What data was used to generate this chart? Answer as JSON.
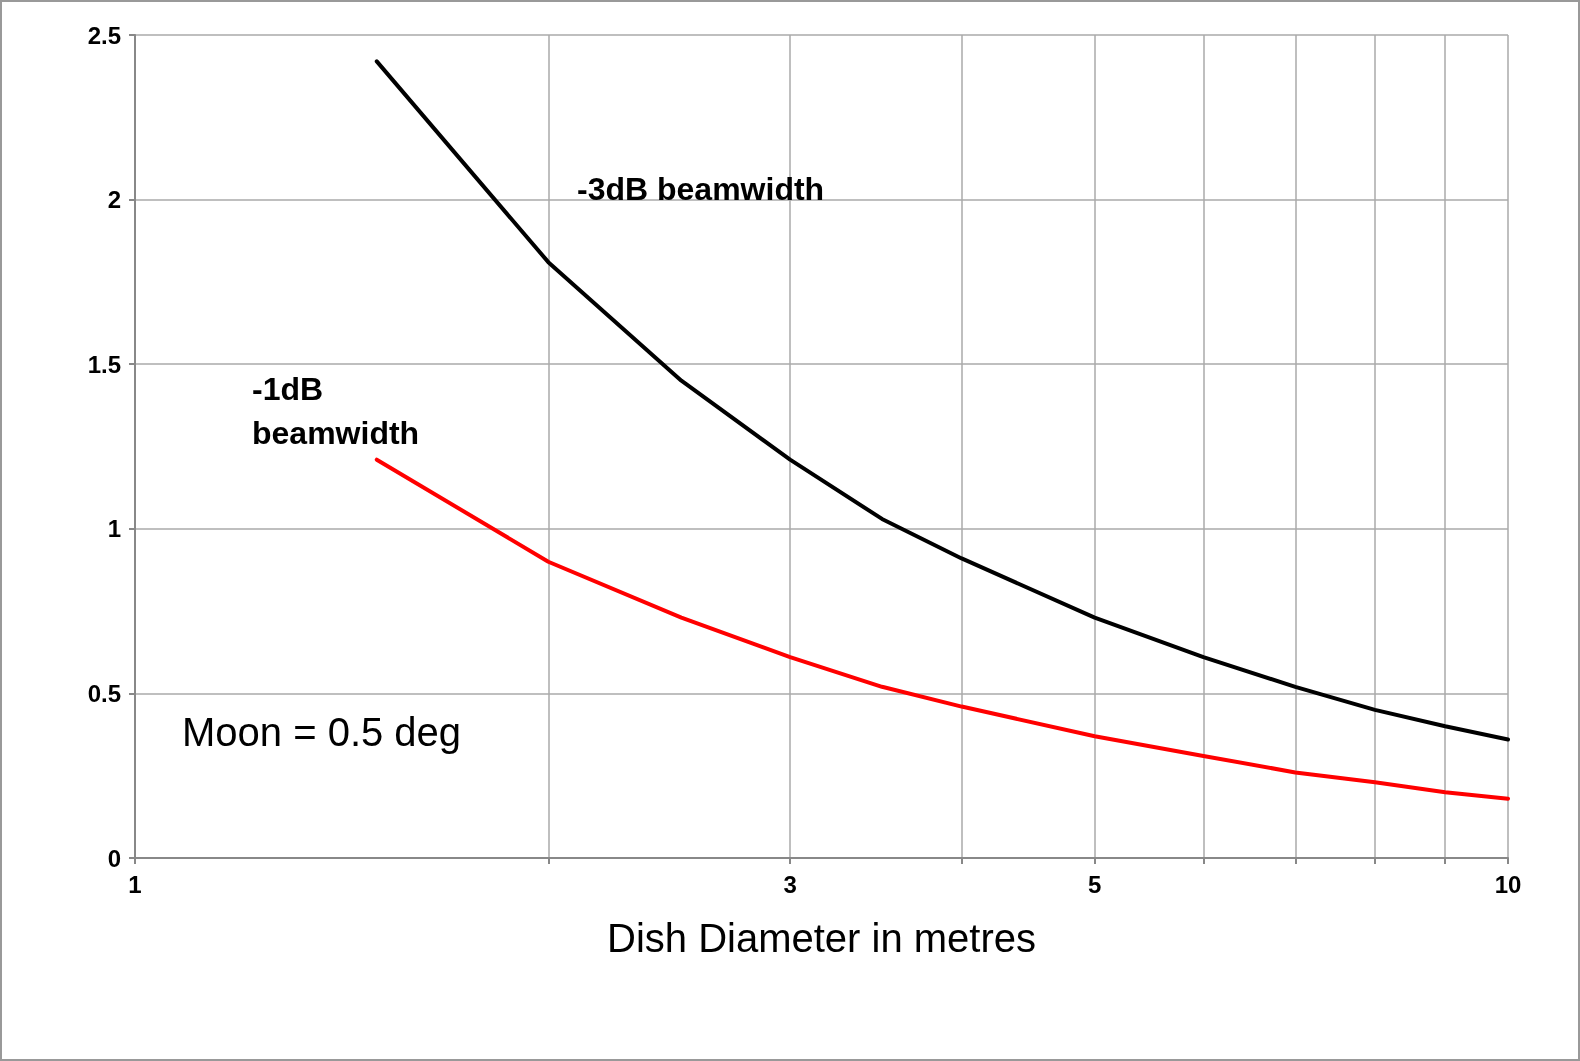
{
  "chart_data": {
    "type": "line",
    "xlabel": "Dish Diameter in metres",
    "x": [
      1.5,
      2,
      2.5,
      3,
      3.5,
      4,
      5,
      6,
      7,
      8,
      9,
      10
    ],
    "series": [
      {
        "name": "-3dB beamwidth",
        "color": "#000000",
        "values": [
          2.42,
          1.81,
          1.45,
          1.21,
          1.03,
          0.91,
          0.73,
          0.61,
          0.52,
          0.45,
          0.4,
          0.36
        ]
      },
      {
        "name": "-1dB beamwidth",
        "color": "#ff0000",
        "values": [
          1.21,
          0.9,
          0.73,
          0.61,
          0.52,
          0.46,
          0.37,
          0.31,
          0.26,
          0.23,
          0.2,
          0.18
        ]
      }
    ],
    "annotations": [
      "Moon = 0.5 deg"
    ],
    "log": "x",
    "xlim": [
      1,
      10
    ],
    "xticks": [
      1,
      {
        "value": 2,
        "label": null
      },
      3,
      {
        "value": 4,
        "label": null
      },
      5,
      {
        "value": 6,
        "label": null
      },
      {
        "value": 7,
        "label": null
      },
      {
        "value": 8,
        "label": null
      },
      {
        "value": 9,
        "label": null
      },
      10
    ],
    "ylim": [
      0,
      2.5
    ],
    "yticks": [
      0,
      0.5,
      1,
      1.5,
      2,
      2.5
    ],
    "grid": true,
    "legend": false,
    "marker": "none",
    "line_style": "solid"
  }
}
